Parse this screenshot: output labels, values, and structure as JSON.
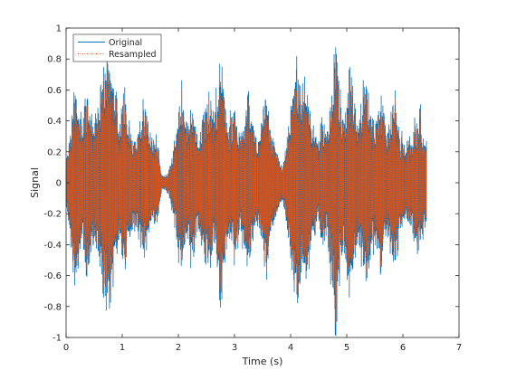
{
  "chart_data": {
    "type": "line",
    "title": "",
    "xlabel": "Time (s)",
    "ylabel": "Signal",
    "xlim": [
      0,
      7
    ],
    "ylim": [
      -1,
      1
    ],
    "xticks": [
      0,
      1,
      2,
      3,
      4,
      5,
      6,
      7
    ],
    "yticks": [
      -1,
      -0.8,
      -0.6,
      -0.4,
      -0.2,
      0,
      0.2,
      0.4,
      0.6,
      0.8,
      1
    ],
    "grid": false,
    "legend": "top-left",
    "signal_end_s": 6.42,
    "envelope": {
      "t": [
        0.0,
        0.05,
        0.1,
        0.15,
        0.2,
        0.25,
        0.3,
        0.35,
        0.4,
        0.45,
        0.5,
        0.55,
        0.6,
        0.65,
        0.7,
        0.75,
        0.8,
        0.85,
        0.9,
        0.95,
        1.0,
        1.05,
        1.1,
        1.15,
        1.2,
        1.25,
        1.3,
        1.35,
        1.4,
        1.45,
        1.5,
        1.55,
        1.6,
        1.65,
        1.7,
        1.75,
        1.8,
        1.85,
        1.9,
        1.95,
        2.0,
        2.05,
        2.1,
        2.15,
        2.2,
        2.25,
        2.3,
        2.35,
        2.4,
        2.45,
        2.5,
        2.55,
        2.6,
        2.65,
        2.7,
        2.75,
        2.8,
        2.85,
        2.9,
        2.95,
        3.0,
        3.05,
        3.1,
        3.15,
        3.2,
        3.25,
        3.3,
        3.35,
        3.4,
        3.45,
        3.5,
        3.55,
        3.6,
        3.65,
        3.7,
        3.75,
        3.8,
        3.85,
        3.9,
        3.95,
        4.0,
        4.05,
        4.1,
        4.15,
        4.2,
        4.25,
        4.3,
        4.35,
        4.4,
        4.45,
        4.5,
        4.55,
        4.6,
        4.65,
        4.7,
        4.75,
        4.8,
        4.85,
        4.9,
        4.95,
        5.0,
        5.05,
        5.1,
        5.15,
        5.2,
        5.25,
        5.3,
        5.35,
        5.4,
        5.45,
        5.5,
        5.55,
        5.6,
        5.65,
        5.7,
        5.75,
        5.8,
        5.85,
        5.9,
        5.95,
        6.0,
        6.05,
        6.1,
        6.15,
        6.2,
        6.25,
        6.3,
        6.35,
        6.42
      ],
      "amp": [
        0.15,
        0.25,
        0.45,
        0.62,
        0.55,
        0.45,
        0.35,
        0.55,
        0.58,
        0.42,
        0.35,
        0.48,
        0.55,
        0.65,
        0.75,
        0.8,
        0.7,
        0.6,
        0.45,
        0.3,
        0.5,
        0.58,
        0.4,
        0.35,
        0.3,
        0.28,
        0.35,
        0.42,
        0.45,
        0.38,
        0.3,
        0.25,
        0.3,
        0.2,
        0.05,
        0.04,
        0.06,
        0.1,
        0.2,
        0.3,
        0.4,
        0.55,
        0.45,
        0.35,
        0.4,
        0.5,
        0.38,
        0.3,
        0.35,
        0.45,
        0.5,
        0.55,
        0.45,
        0.4,
        0.6,
        0.75,
        0.65,
        0.45,
        0.35,
        0.4,
        0.5,
        0.42,
        0.3,
        0.35,
        0.45,
        0.55,
        0.42,
        0.3,
        0.25,
        0.3,
        0.4,
        0.55,
        0.45,
        0.3,
        0.25,
        0.2,
        0.15,
        0.1,
        0.18,
        0.3,
        0.45,
        0.6,
        0.78,
        0.65,
        0.5,
        0.55,
        0.6,
        0.45,
        0.35,
        0.3,
        0.25,
        0.4,
        0.35,
        0.3,
        0.5,
        0.6,
        0.95,
        0.7,
        0.5,
        0.4,
        0.55,
        0.7,
        0.6,
        0.45,
        0.35,
        0.4,
        0.55,
        0.65,
        0.5,
        0.4,
        0.35,
        0.45,
        0.55,
        0.45,
        0.3,
        0.35,
        0.5,
        0.6,
        0.45,
        0.3,
        0.25,
        0.2,
        0.3,
        0.25,
        0.4,
        0.35,
        0.45,
        0.3,
        0.25
      ]
    },
    "series": [
      {
        "name": "Original",
        "color": "#0072bd",
        "style": "solid"
      },
      {
        "name": "Resampled",
        "color": "#d95319",
        "style": "dotted"
      }
    ]
  }
}
